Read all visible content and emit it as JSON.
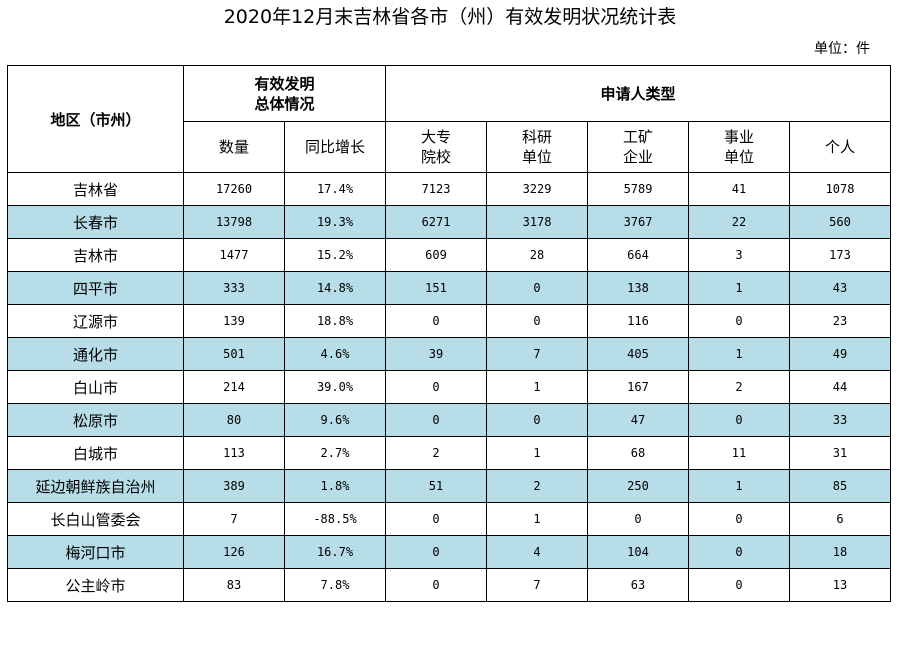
{
  "title": "2020年12月末吉林省各市（州）有效发明状况统计表",
  "unit": "单位：件",
  "header": {
    "region": "地区（市州）",
    "overall_line1": "有效发明",
    "overall_line2": "总体情况",
    "applicant": "申请人类型",
    "count": "数量",
    "yoy": "同比增长",
    "college_line1": "大专",
    "college_line2": "院校",
    "research_line1": "科研",
    "research_line2": "单位",
    "industry_line1": "工矿",
    "industry_line2": "企业",
    "institution_line1": "事业",
    "institution_line2": "单位",
    "individual": "个人"
  },
  "shade_color": "#b7dde8",
  "rows": [
    {
      "region": "吉林省",
      "count": "17260",
      "yoy": "17.4%",
      "college": "7123",
      "research": "3229",
      "industry": "5789",
      "institution": "41",
      "individual": "1078"
    },
    {
      "region": "长春市",
      "count": "13798",
      "yoy": "19.3%",
      "college": "6271",
      "research": "3178",
      "industry": "3767",
      "institution": "22",
      "individual": "560"
    },
    {
      "region": "吉林市",
      "count": "1477",
      "yoy": "15.2%",
      "college": "609",
      "research": "28",
      "industry": "664",
      "institution": "3",
      "individual": "173"
    },
    {
      "region": "四平市",
      "count": "333",
      "yoy": "14.8%",
      "college": "151",
      "research": "0",
      "industry": "138",
      "institution": "1",
      "individual": "43"
    },
    {
      "region": "辽源市",
      "count": "139",
      "yoy": "18.8%",
      "college": "0",
      "research": "0",
      "industry": "116",
      "institution": "0",
      "individual": "23"
    },
    {
      "region": "通化市",
      "count": "501",
      "yoy": "4.6%",
      "college": "39",
      "research": "7",
      "industry": "405",
      "institution": "1",
      "individual": "49"
    },
    {
      "region": "白山市",
      "count": "214",
      "yoy": "39.0%",
      "college": "0",
      "research": "1",
      "industry": "167",
      "institution": "2",
      "individual": "44"
    },
    {
      "region": "松原市",
      "count": "80",
      "yoy": "9.6%",
      "college": "0",
      "research": "0",
      "industry": "47",
      "institution": "0",
      "individual": "33"
    },
    {
      "region": "白城市",
      "count": "113",
      "yoy": "2.7%",
      "college": "2",
      "research": "1",
      "industry": "68",
      "institution": "11",
      "individual": "31"
    },
    {
      "region": "延边朝鲜族自治州",
      "count": "389",
      "yoy": "1.8%",
      "college": "51",
      "research": "2",
      "industry": "250",
      "institution": "1",
      "individual": "85"
    },
    {
      "region": "长白山管委会",
      "count": "7",
      "yoy": "-88.5%",
      "college": "0",
      "research": "1",
      "industry": "0",
      "institution": "0",
      "individual": "6"
    },
    {
      "region": "梅河口市",
      "count": "126",
      "yoy": "16.7%",
      "college": "0",
      "research": "4",
      "industry": "104",
      "institution": "0",
      "individual": "18"
    },
    {
      "region": "公主岭市",
      "count": "83",
      "yoy": "7.8%",
      "college": "0",
      "research": "7",
      "industry": "63",
      "institution": "0",
      "individual": "13"
    }
  ]
}
